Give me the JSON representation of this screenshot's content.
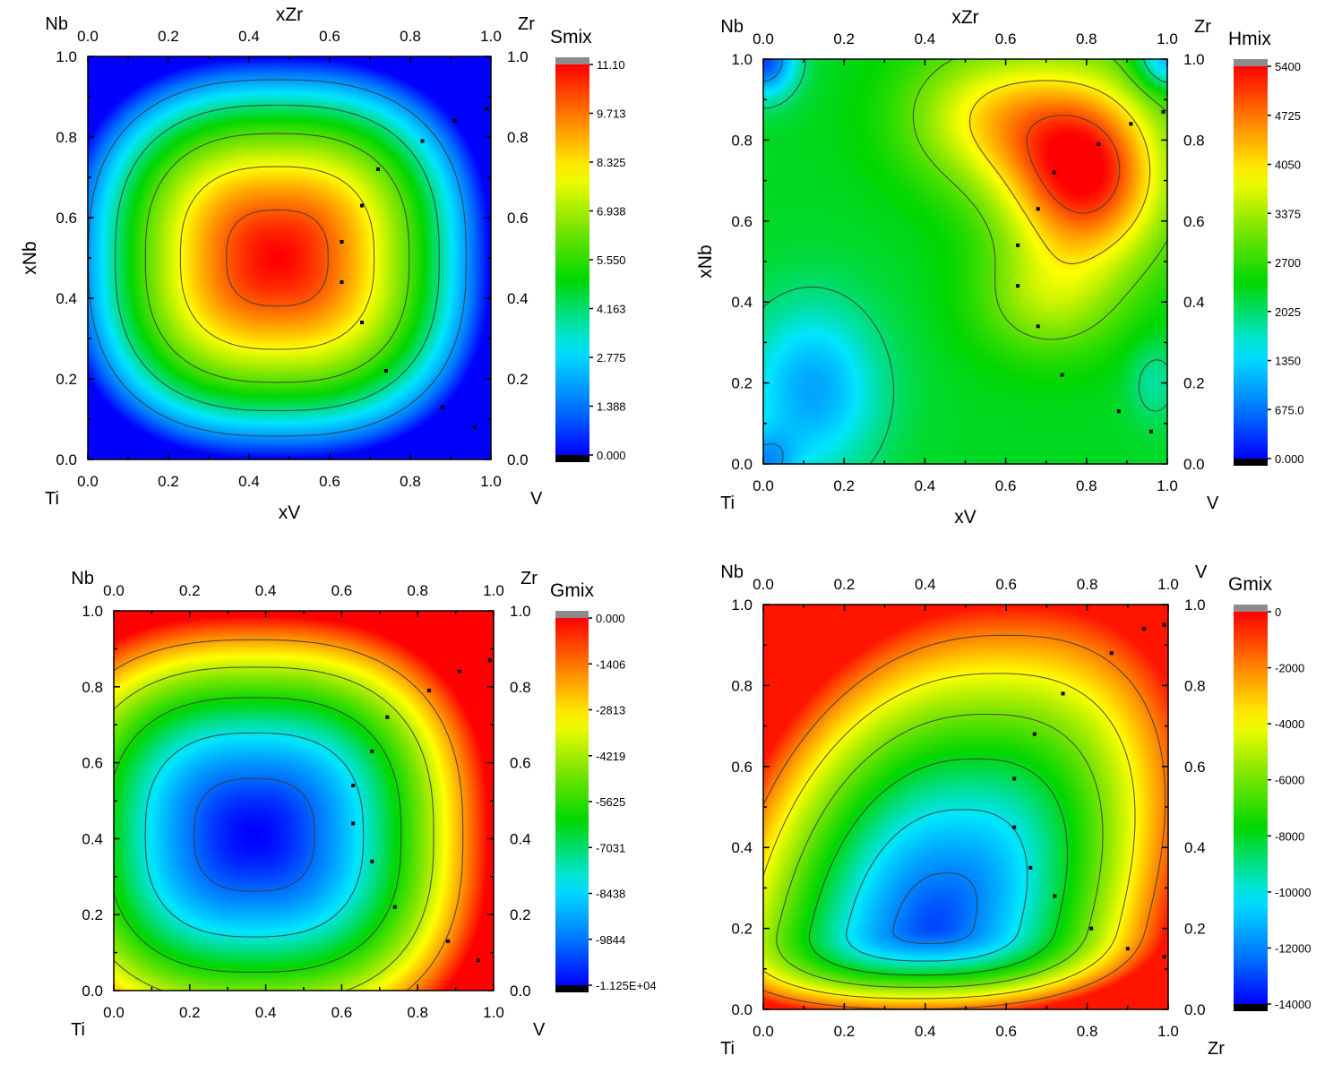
{
  "chart_data": [
    {
      "type": "heatmap",
      "colorbar_title": "Smix",
      "colorbar_ticks": [
        "11.10",
        "9.713",
        "8.325",
        "6.938",
        "5.550",
        "4.163",
        "2.775",
        "1.388",
        "0.000"
      ],
      "zlim": [
        0,
        11.1
      ],
      "corner_labels": {
        "top_left": "Nb",
        "top_right": "Zr",
        "bottom_left": "Ti",
        "bottom_right": "V"
      },
      "xlabel": "xV",
      "x2label": "xZr",
      "ylabel": "xNb",
      "xlim": [
        0,
        1
      ],
      "ylim": [
        0,
        1
      ],
      "x_ticks": [
        "0.0",
        "0.2",
        "0.4",
        "0.6",
        "0.8",
        "1.0"
      ],
      "y_ticks": [
        "0.0",
        "0.2",
        "0.4",
        "0.6",
        "0.8",
        "1.0"
      ],
      "contour_levels": [
        2,
        4,
        6,
        8,
        10
      ],
      "peak": {
        "x": 0.47,
        "y": 0.5,
        "value": 11.1
      },
      "sample_points": [
        [
          0.91,
          0.84
        ],
        [
          0.83,
          0.79
        ],
        [
          0.72,
          0.72
        ],
        [
          0.68,
          0.63
        ],
        [
          0.63,
          0.54
        ],
        [
          0.63,
          0.44
        ],
        [
          0.68,
          0.34
        ],
        [
          0.74,
          0.22
        ],
        [
          0.88,
          0.13
        ],
        [
          0.96,
          0.08
        ],
        [
          0.99,
          0.87
        ]
      ]
    },
    {
      "type": "heatmap",
      "colorbar_title": "Hmix",
      "colorbar_ticks": [
        "5400",
        "4725",
        "4050",
        "3375",
        "2700",
        "2025",
        "1350",
        "675.0",
        "0.000"
      ],
      "zlim": [
        0,
        5400
      ],
      "corner_labels": {
        "top_left": "Nb",
        "top_right": "Zr",
        "bottom_left": "Ti",
        "bottom_right": "V"
      },
      "xlabel": "xV",
      "x2label": "xZr",
      "ylabel": "xNb",
      "xlim": [
        0,
        1
      ],
      "ylim": [
        0,
        1
      ],
      "x_ticks": [
        "0.0",
        "0.2",
        "0.4",
        "0.6",
        "0.8",
        "1.0"
      ],
      "y_ticks": [
        "0.0",
        "0.2",
        "0.4",
        "0.6",
        "0.8",
        "1.0"
      ],
      "contour_levels": [
        1000,
        2000,
        3000,
        4000,
        5000
      ],
      "peak": {
        "x": 0.8,
        "y": 0.7,
        "value": 5400
      },
      "sample_points": [
        [
          0.91,
          0.84
        ],
        [
          0.83,
          0.79
        ],
        [
          0.72,
          0.72
        ],
        [
          0.68,
          0.63
        ],
        [
          0.63,
          0.54
        ],
        [
          0.63,
          0.44
        ],
        [
          0.68,
          0.34
        ],
        [
          0.74,
          0.22
        ],
        [
          0.88,
          0.13
        ],
        [
          0.96,
          0.08
        ],
        [
          0.99,
          0.87
        ]
      ]
    },
    {
      "type": "heatmap",
      "colorbar_title": "Gmix",
      "colorbar_ticks": [
        "0.000",
        "-1406",
        "-2813",
        "-4219",
        "-5625",
        "-7031",
        "-8438",
        "-9844",
        "-1.125E+04"
      ],
      "zlim": [
        -11250,
        0
      ],
      "corner_labels": {
        "top_left": "Nb",
        "top_right": "Zr",
        "bottom_left": "Ti",
        "bottom_right": "V"
      },
      "xlabel": "",
      "x2label": "",
      "ylabel": "",
      "xlim": [
        0,
        1
      ],
      "ylim": [
        0,
        1
      ],
      "x_ticks": [
        "0.0",
        "0.2",
        "0.4",
        "0.6",
        "0.8",
        "1.0"
      ],
      "y_ticks": [
        "0.0",
        "0.2",
        "0.4",
        "0.6",
        "0.8",
        "1.0"
      ],
      "contour_levels": [
        -10000,
        -8000,
        -6000,
        -4000,
        -2000
      ],
      "peak": {
        "x": 0.37,
        "y": 0.41,
        "value": -11250
      },
      "sample_points": [
        [
          0.91,
          0.84
        ],
        [
          0.83,
          0.79
        ],
        [
          0.72,
          0.72
        ],
        [
          0.68,
          0.63
        ],
        [
          0.63,
          0.54
        ],
        [
          0.63,
          0.44
        ],
        [
          0.68,
          0.34
        ],
        [
          0.74,
          0.22
        ],
        [
          0.88,
          0.13
        ],
        [
          0.96,
          0.08
        ],
        [
          0.99,
          0.87
        ]
      ]
    },
    {
      "type": "heatmap",
      "colorbar_title": "Gmix",
      "colorbar_ticks": [
        "0",
        "-2000",
        "-4000",
        "-6000",
        "-8000",
        "-10000",
        "-12000",
        "-14000"
      ],
      "zlim": [
        -14000,
        0
      ],
      "corner_labels": {
        "top_left": "Nb",
        "top_right": "V",
        "bottom_left": "Ti",
        "bottom_right": "Zr"
      },
      "xlabel": "",
      "x2label": "",
      "ylabel": "",
      "xlim": [
        0,
        1
      ],
      "ylim": [
        0,
        1
      ],
      "x_ticks": [
        "0.0",
        "0.2",
        "0.4",
        "0.6",
        "0.8",
        "1.0"
      ],
      "y_ticks": [
        "0.0",
        "0.2",
        "0.4",
        "0.6",
        "0.8",
        "1.0"
      ],
      "contour_levels": [
        -12000,
        -10000,
        -8000,
        -6000,
        -4000,
        -2000
      ],
      "peak": {
        "x": 0.42,
        "y": 0.2,
        "value": -12700
      },
      "sample_points": [
        [
          0.94,
          0.94
        ],
        [
          0.86,
          0.88
        ],
        [
          0.74,
          0.78
        ],
        [
          0.67,
          0.68
        ],
        [
          0.62,
          0.57
        ],
        [
          0.62,
          0.45
        ],
        [
          0.66,
          0.35
        ],
        [
          0.72,
          0.28
        ],
        [
          0.81,
          0.2
        ],
        [
          0.9,
          0.15
        ],
        [
          0.99,
          0.13
        ],
        [
          0.99,
          0.95
        ]
      ]
    }
  ]
}
